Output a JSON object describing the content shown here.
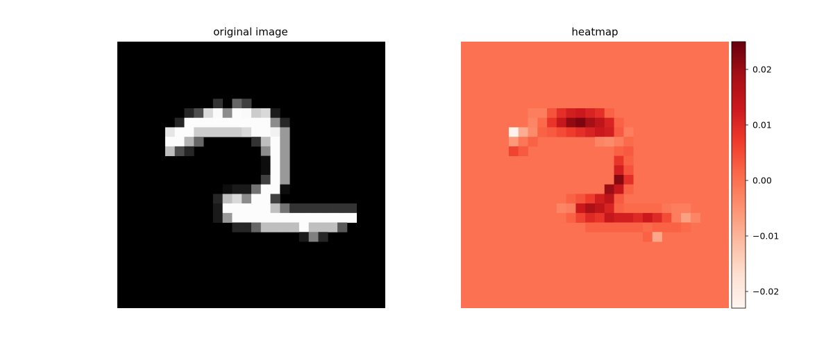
{
  "chart_data": [
    {
      "type": "heatmap",
      "title": "original image",
      "grid": false,
      "axes": "off",
      "colormap": "gray",
      "rows": 28,
      "cols": 28,
      "vmin": 0,
      "vmax": 1,
      "pixels": [
        {
          "r": 6,
          "c": 10,
          "v": 0.2
        },
        {
          "r": 6,
          "c": 12,
          "v": 0.4
        },
        {
          "r": 6,
          "c": 13,
          "v": 0.25
        },
        {
          "r": 7,
          "c": 7,
          "v": 0.15
        },
        {
          "r": 7,
          "c": 8,
          "v": 0.3
        },
        {
          "r": 7,
          "c": 9,
          "v": 0.85
        },
        {
          "r": 7,
          "c": 10,
          "v": 0.98
        },
        {
          "r": 7,
          "c": 11,
          "v": 0.55
        },
        {
          "r": 7,
          "c": 12,
          "v": 0.99
        },
        {
          "r": 7,
          "c": 13,
          "v": 0.98
        },
        {
          "r": 7,
          "c": 14,
          "v": 0.8
        },
        {
          "r": 7,
          "c": 15,
          "v": 0.85
        },
        {
          "r": 7,
          "c": 16,
          "v": 0.1
        },
        {
          "r": 8,
          "c": 6,
          "v": 0.15
        },
        {
          "r": 8,
          "c": 7,
          "v": 0.99
        },
        {
          "r": 8,
          "c": 8,
          "v": 0.99
        },
        {
          "r": 8,
          "c": 9,
          "v": 0.99
        },
        {
          "r": 8,
          "c": 10,
          "v": 0.99
        },
        {
          "r": 8,
          "c": 11,
          "v": 0.99
        },
        {
          "r": 8,
          "c": 12,
          "v": 0.99
        },
        {
          "r": 8,
          "c": 13,
          "v": 0.99
        },
        {
          "r": 8,
          "c": 14,
          "v": 0.99
        },
        {
          "r": 8,
          "c": 15,
          "v": 0.99
        },
        {
          "r": 8,
          "c": 16,
          "v": 0.55
        },
        {
          "r": 8,
          "c": 17,
          "v": 0.15
        },
        {
          "r": 9,
          "c": 5,
          "v": 0.9
        },
        {
          "r": 9,
          "c": 6,
          "v": 0.99
        },
        {
          "r": 9,
          "c": 7,
          "v": 0.99
        },
        {
          "r": 9,
          "c": 8,
          "v": 0.8
        },
        {
          "r": 9,
          "c": 9,
          "v": 0.8
        },
        {
          "r": 9,
          "c": 10,
          "v": 0.8
        },
        {
          "r": 9,
          "c": 11,
          "v": 0.8
        },
        {
          "r": 9,
          "c": 12,
          "v": 0.8
        },
        {
          "r": 9,
          "c": 13,
          "v": 0.85
        },
        {
          "r": 9,
          "c": 14,
          "v": 0.99
        },
        {
          "r": 9,
          "c": 15,
          "v": 0.99
        },
        {
          "r": 9,
          "c": 16,
          "v": 0.95
        },
        {
          "r": 9,
          "c": 17,
          "v": 0.6
        },
        {
          "r": 10,
          "c": 5,
          "v": 0.99
        },
        {
          "r": 10,
          "c": 6,
          "v": 0.99
        },
        {
          "r": 10,
          "c": 7,
          "v": 0.7
        },
        {
          "r": 10,
          "c": 8,
          "v": 0.4
        },
        {
          "r": 10,
          "c": 14,
          "v": 0.2
        },
        {
          "r": 10,
          "c": 15,
          "v": 0.75
        },
        {
          "r": 10,
          "c": 16,
          "v": 0.99
        },
        {
          "r": 10,
          "c": 17,
          "v": 0.6
        },
        {
          "r": 11,
          "c": 5,
          "v": 0.75
        },
        {
          "r": 11,
          "c": 6,
          "v": 0.3
        },
        {
          "r": 11,
          "c": 7,
          "v": 0.15
        },
        {
          "r": 11,
          "c": 15,
          "v": 0.55
        },
        {
          "r": 11,
          "c": 16,
          "v": 0.99
        },
        {
          "r": 11,
          "c": 17,
          "v": 0.6
        },
        {
          "r": 12,
          "c": 15,
          "v": 0.05
        },
        {
          "r": 12,
          "c": 16,
          "v": 0.99
        },
        {
          "r": 12,
          "c": 17,
          "v": 0.6
        },
        {
          "r": 13,
          "c": 15,
          "v": 0.05
        },
        {
          "r": 13,
          "c": 16,
          "v": 0.99
        },
        {
          "r": 13,
          "c": 17,
          "v": 0.6
        },
        {
          "r": 14,
          "c": 15,
          "v": 0.25
        },
        {
          "r": 14,
          "c": 16,
          "v": 0.99
        },
        {
          "r": 14,
          "c": 17,
          "v": 0.6
        },
        {
          "r": 15,
          "c": 11,
          "v": 0.05
        },
        {
          "r": 15,
          "c": 12,
          "v": 0.1
        },
        {
          "r": 15,
          "c": 13,
          "v": 0.1
        },
        {
          "r": 15,
          "c": 14,
          "v": 0.45
        },
        {
          "r": 15,
          "c": 15,
          "v": 0.99
        },
        {
          "r": 15,
          "c": 16,
          "v": 0.99
        },
        {
          "r": 15,
          "c": 17,
          "v": 0.05
        },
        {
          "r": 16,
          "c": 10,
          "v": 0.15
        },
        {
          "r": 16,
          "c": 11,
          "v": 0.75
        },
        {
          "r": 16,
          "c": 12,
          "v": 0.85
        },
        {
          "r": 16,
          "c": 13,
          "v": 0.55
        },
        {
          "r": 16,
          "c": 14,
          "v": 0.99
        },
        {
          "r": 16,
          "c": 15,
          "v": 0.99
        },
        {
          "r": 16,
          "c": 16,
          "v": 0.25
        },
        {
          "r": 17,
          "c": 10,
          "v": 0.1
        },
        {
          "r": 17,
          "c": 11,
          "v": 0.99
        },
        {
          "r": 17,
          "c": 12,
          "v": 0.99
        },
        {
          "r": 17,
          "c": 13,
          "v": 0.99
        },
        {
          "r": 17,
          "c": 14,
          "v": 0.99
        },
        {
          "r": 17,
          "c": 15,
          "v": 0.99
        },
        {
          "r": 17,
          "c": 16,
          "v": 0.75
        },
        {
          "r": 17,
          "c": 17,
          "v": 0.45
        },
        {
          "r": 17,
          "c": 18,
          "v": 0.2
        },
        {
          "r": 17,
          "c": 19,
          "v": 0.2
        },
        {
          "r": 17,
          "c": 20,
          "v": 0.2
        },
        {
          "r": 17,
          "c": 21,
          "v": 0.2
        },
        {
          "r": 17,
          "c": 22,
          "v": 0.2
        },
        {
          "r": 17,
          "c": 23,
          "v": 0.2
        },
        {
          "r": 17,
          "c": 24,
          "v": 0.2
        },
        {
          "r": 18,
          "c": 10,
          "v": 0.1
        },
        {
          "r": 18,
          "c": 11,
          "v": 0.6
        },
        {
          "r": 18,
          "c": 12,
          "v": 0.99
        },
        {
          "r": 18,
          "c": 13,
          "v": 0.99
        },
        {
          "r": 18,
          "c": 14,
          "v": 0.99
        },
        {
          "r": 18,
          "c": 15,
          "v": 0.99
        },
        {
          "r": 18,
          "c": 16,
          "v": 0.99
        },
        {
          "r": 18,
          "c": 17,
          "v": 0.99
        },
        {
          "r": 18,
          "c": 18,
          "v": 0.99
        },
        {
          "r": 18,
          "c": 19,
          "v": 0.99
        },
        {
          "r": 18,
          "c": 20,
          "v": 0.99
        },
        {
          "r": 18,
          "c": 21,
          "v": 0.99
        },
        {
          "r": 18,
          "c": 22,
          "v": 0.99
        },
        {
          "r": 18,
          "c": 23,
          "v": 0.99
        },
        {
          "r": 18,
          "c": 24,
          "v": 0.99
        },
        {
          "r": 19,
          "c": 12,
          "v": 0.15
        },
        {
          "r": 19,
          "c": 13,
          "v": 0.15
        },
        {
          "r": 19,
          "c": 14,
          "v": 0.4
        },
        {
          "r": 19,
          "c": 15,
          "v": 0.75
        },
        {
          "r": 19,
          "c": 16,
          "v": 0.75
        },
        {
          "r": 19,
          "c": 17,
          "v": 0.75
        },
        {
          "r": 19,
          "c": 18,
          "v": 0.75
        },
        {
          "r": 19,
          "c": 19,
          "v": 0.99
        },
        {
          "r": 19,
          "c": 20,
          "v": 0.75
        },
        {
          "r": 19,
          "c": 21,
          "v": 0.75
        },
        {
          "r": 19,
          "c": 22,
          "v": 0.75
        },
        {
          "r": 19,
          "c": 23,
          "v": 0.35
        },
        {
          "r": 20,
          "c": 19,
          "v": 0.1
        },
        {
          "r": 20,
          "c": 20,
          "v": 0.5
        },
        {
          "r": 20,
          "c": 21,
          "v": 0.15
        }
      ]
    },
    {
      "type": "heatmap",
      "title": "heatmap",
      "grid": false,
      "axes": "off",
      "colormap": "Reds",
      "rows": 28,
      "cols": 28,
      "vmin": -0.023,
      "vmax": 0.025,
      "background_value": 0.0,
      "colorbar": {
        "ticks": [
          0.02,
          0.01,
          0.0,
          -0.01,
          -0.02
        ],
        "tick_labels": [
          "0.02",
          "0.01",
          "0.00",
          "−0.01",
          "−0.02"
        ]
      },
      "pixels": [
        {
          "r": 7,
          "c": 7,
          "v": -0.002
        },
        {
          "r": 7,
          "c": 8,
          "v": -0.002
        },
        {
          "r": 7,
          "c": 9,
          "v": 0.004
        },
        {
          "r": 7,
          "c": 10,
          "v": 0.009
        },
        {
          "r": 7,
          "c": 11,
          "v": 0.012
        },
        {
          "r": 7,
          "c": 12,
          "v": 0.013
        },
        {
          "r": 7,
          "c": 13,
          "v": 0.011
        },
        {
          "r": 7,
          "c": 14,
          "v": 0.009
        },
        {
          "r": 7,
          "c": 15,
          "v": 0.002
        },
        {
          "r": 8,
          "c": 7,
          "v": -0.003
        },
        {
          "r": 8,
          "c": 8,
          "v": 0.001
        },
        {
          "r": 8,
          "c": 9,
          "v": 0.008
        },
        {
          "r": 8,
          "c": 10,
          "v": 0.014
        },
        {
          "r": 8,
          "c": 11,
          "v": 0.021
        },
        {
          "r": 8,
          "c": 12,
          "v": 0.023
        },
        {
          "r": 8,
          "c": 13,
          "v": 0.019
        },
        {
          "r": 8,
          "c": 14,
          "v": 0.015
        },
        {
          "r": 8,
          "c": 15,
          "v": 0.011
        },
        {
          "r": 8,
          "c": 16,
          "v": 0.002
        },
        {
          "r": 9,
          "c": 5,
          "v": -0.022
        },
        {
          "r": 9,
          "c": 6,
          "v": -0.009
        },
        {
          "r": 9,
          "c": 7,
          "v": -0.004
        },
        {
          "r": 9,
          "c": 8,
          "v": 0.002
        },
        {
          "r": 9,
          "c": 9,
          "v": 0.003
        },
        {
          "r": 9,
          "c": 10,
          "v": 0.005
        },
        {
          "r": 9,
          "c": 11,
          "v": 0.007
        },
        {
          "r": 9,
          "c": 12,
          "v": 0.009
        },
        {
          "r": 9,
          "c": 13,
          "v": 0.011
        },
        {
          "r": 9,
          "c": 14,
          "v": 0.013
        },
        {
          "r": 9,
          "c": 15,
          "v": 0.012
        },
        {
          "r": 9,
          "c": 16,
          "v": 0.003
        },
        {
          "r": 9,
          "c": 17,
          "v": -0.002
        },
        {
          "r": 10,
          "c": 5,
          "v": -0.006
        },
        {
          "r": 10,
          "c": 6,
          "v": -0.001
        },
        {
          "r": 10,
          "c": 7,
          "v": 0.002
        },
        {
          "r": 10,
          "c": 14,
          "v": -0.003
        },
        {
          "r": 10,
          "c": 15,
          "v": -0.004
        },
        {
          "r": 10,
          "c": 16,
          "v": -0.002
        },
        {
          "r": 10,
          "c": 17,
          "v": 0.001
        },
        {
          "r": 11,
          "c": 5,
          "v": 0.006
        },
        {
          "r": 11,
          "c": 6,
          "v": 0.003
        },
        {
          "r": 11,
          "c": 16,
          "v": 0.002
        },
        {
          "r": 11,
          "c": 17,
          "v": 0.003
        },
        {
          "r": 12,
          "c": 16,
          "v": 0.008
        },
        {
          "r": 12,
          "c": 17,
          "v": 0.002
        },
        {
          "r": 13,
          "c": 16,
          "v": 0.012
        },
        {
          "r": 13,
          "c": 17,
          "v": 0.004
        },
        {
          "r": 14,
          "c": 16,
          "v": 0.022
        },
        {
          "r": 14,
          "c": 17,
          "v": 0.009
        },
        {
          "r": 15,
          "c": 15,
          "v": 0.02
        },
        {
          "r": 15,
          "c": 16,
          "v": 0.014
        },
        {
          "r": 15,
          "c": 17,
          "v": 0.002
        },
        {
          "r": 16,
          "c": 11,
          "v": 0.002
        },
        {
          "r": 16,
          "c": 12,
          "v": 0.004
        },
        {
          "r": 16,
          "c": 13,
          "v": 0.007
        },
        {
          "r": 16,
          "c": 14,
          "v": 0.012
        },
        {
          "r": 16,
          "c": 15,
          "v": 0.015
        },
        {
          "r": 16,
          "c": 16,
          "v": 0.003
        },
        {
          "r": 17,
          "c": 10,
          "v": -0.003
        },
        {
          "r": 17,
          "c": 11,
          "v": -0.002
        },
        {
          "r": 17,
          "c": 12,
          "v": 0.013
        },
        {
          "r": 17,
          "c": 13,
          "v": 0.018
        },
        {
          "r": 17,
          "c": 14,
          "v": 0.015
        },
        {
          "r": 17,
          "c": 15,
          "v": 0.011
        },
        {
          "r": 17,
          "c": 16,
          "v": 0.002
        },
        {
          "r": 17,
          "c": 17,
          "v": 0.001
        },
        {
          "r": 17,
          "c": 18,
          "v": 0.001
        },
        {
          "r": 17,
          "c": 19,
          "v": 0.001
        },
        {
          "r": 17,
          "c": 20,
          "v": 0.001
        },
        {
          "r": 17,
          "c": 21,
          "v": -0.001
        },
        {
          "r": 17,
          "c": 22,
          "v": -0.002
        },
        {
          "r": 17,
          "c": 23,
          "v": -0.002
        },
        {
          "r": 18,
          "c": 10,
          "v": 0.0
        },
        {
          "r": 18,
          "c": 11,
          "v": 0.002
        },
        {
          "r": 18,
          "c": 12,
          "v": 0.006
        },
        {
          "r": 18,
          "c": 13,
          "v": 0.01
        },
        {
          "r": 18,
          "c": 14,
          "v": 0.008
        },
        {
          "r": 18,
          "c": 15,
          "v": 0.014
        },
        {
          "r": 18,
          "c": 16,
          "v": 0.012
        },
        {
          "r": 18,
          "c": 17,
          "v": 0.012
        },
        {
          "r": 18,
          "c": 18,
          "v": 0.01
        },
        {
          "r": 18,
          "c": 19,
          "v": 0.013
        },
        {
          "r": 18,
          "c": 20,
          "v": 0.01
        },
        {
          "r": 18,
          "c": 21,
          "v": 0.005
        },
        {
          "r": 18,
          "c": 22,
          "v": -0.002
        },
        {
          "r": 18,
          "c": 23,
          "v": -0.007
        },
        {
          "r": 18,
          "c": 24,
          "v": -0.003
        },
        {
          "r": 19,
          "c": 13,
          "v": 0.002
        },
        {
          "r": 19,
          "c": 14,
          "v": 0.002
        },
        {
          "r": 19,
          "c": 15,
          "v": 0.002
        },
        {
          "r": 19,
          "c": 16,
          "v": 0.002
        },
        {
          "r": 19,
          "c": 17,
          "v": 0.002
        },
        {
          "r": 19,
          "c": 18,
          "v": 0.002
        },
        {
          "r": 19,
          "c": 19,
          "v": 0.001
        },
        {
          "r": 19,
          "c": 20,
          "v": 0.002
        },
        {
          "r": 19,
          "c": 21,
          "v": 0.002
        },
        {
          "r": 19,
          "c": 22,
          "v": 0.002
        },
        {
          "r": 19,
          "c": 23,
          "v": 0.001
        },
        {
          "r": 20,
          "c": 19,
          "v": 0.002
        },
        {
          "r": 20,
          "c": 20,
          "v": -0.008
        }
      ]
    }
  ]
}
